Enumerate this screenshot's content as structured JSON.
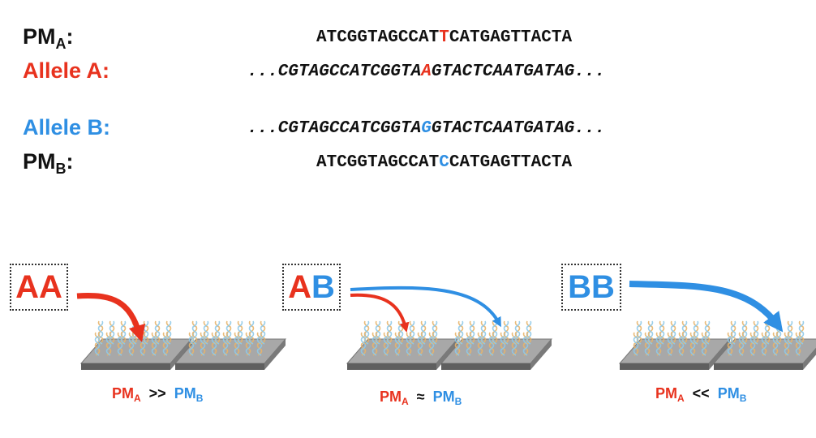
{
  "colors": {
    "allele_a": "#e8321e",
    "allele_b": "#2f8fe3",
    "text": "#111111",
    "chip": "#9a9a9a"
  },
  "sequences": {
    "pm_a": {
      "label": "PM",
      "sub": "A",
      "colon": ":",
      "pre": "ATCGGTAGCCAT",
      "snp": "T",
      "post": "CATGAGTTACTA"
    },
    "allele_a": {
      "label": "Allele A:",
      "pre": "...CGTAGCCATCGGTA",
      "snp": "A",
      "post": "GTACTCAATGATAG..."
    },
    "allele_b": {
      "label": "Allele B:",
      "pre": "...CGTAGCCATCGGTA",
      "snp": "G",
      "post": "GTACTCAATGATAG..."
    },
    "pm_b": {
      "label": "PM",
      "sub": "B",
      "colon": ":",
      "pre": "ATCGGTAGCCAT",
      "snp": "C",
      "post": "CATGAGTTACTA"
    }
  },
  "panels": [
    {
      "genotype_1": "A",
      "genotype_2": "A",
      "left": "PM",
      "left_sub": "A",
      "op": ">>",
      "right": "PM",
      "right_sub": "B"
    },
    {
      "genotype_1": "A",
      "genotype_2": "B",
      "left": "PM",
      "left_sub": "A",
      "op": "≈",
      "right": "PM",
      "right_sub": "B"
    },
    {
      "genotype_1": "B",
      "genotype_2": "B",
      "left": "PM",
      "left_sub": "A",
      "op": "<<",
      "right": "PM",
      "right_sub": "B"
    }
  ]
}
